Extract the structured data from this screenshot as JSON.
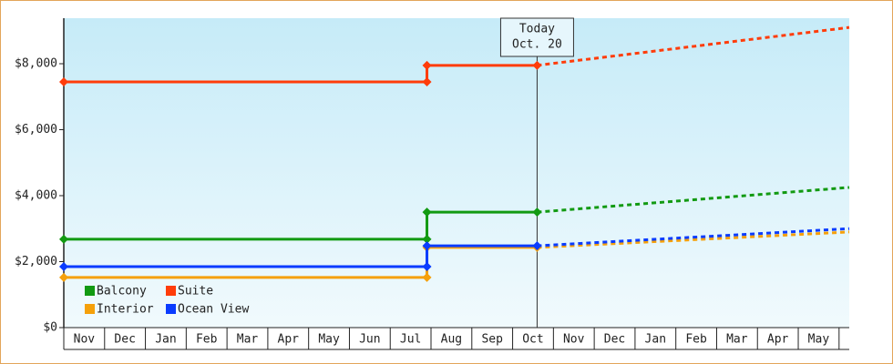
{
  "chart_data": {
    "type": "line",
    "categories": [
      "Nov",
      "Dec",
      "Jan",
      "Feb",
      "Mar",
      "Apr",
      "May",
      "Jun",
      "Jul",
      "Aug",
      "Sep",
      "Oct",
      "Nov",
      "Dec",
      "Jan",
      "Feb",
      "Mar",
      "Apr",
      "May"
    ],
    "xlim": [
      0,
      19.25
    ],
    "ylim": [
      0,
      9380
    ],
    "yticks": [
      {
        "value": 0,
        "label": "$0"
      },
      {
        "value": 2000,
        "label": "$2,000"
      },
      {
        "value": 4000,
        "label": "$4,000"
      },
      {
        "value": 6000,
        "label": "$6,000"
      },
      {
        "value": 8000,
        "label": "$8,000"
      }
    ],
    "today": {
      "x": 11.6,
      "label": [
        "Today",
        "Oct. 20"
      ]
    },
    "series": [
      {
        "name": "Balcony",
        "color": "#129a12",
        "x": [
          0,
          8.9,
          8.9,
          11.6
        ],
        "values": [
          2680,
          2680,
          3500,
          3500
        ],
        "forecast": {
          "x": [
            19.25
          ],
          "values": [
            4250
          ]
        }
      },
      {
        "name": "Suite",
        "color": "#ff3c0a",
        "x": [
          0,
          8.9,
          8.9,
          11.6
        ],
        "values": [
          7450,
          7450,
          7950,
          7950
        ],
        "forecast": {
          "x": [
            19.25
          ],
          "values": [
            9100
          ]
        }
      },
      {
        "name": "Interior",
        "color": "#f5a00a",
        "x": [
          0,
          8.9,
          8.9,
          11.6
        ],
        "values": [
          1520,
          1520,
          2430,
          2430
        ],
        "forecast": {
          "x": [
            19.25
          ],
          "values": [
            2900
          ]
        }
      },
      {
        "name": "Ocean View",
        "color": "#0a3cff",
        "x": [
          0,
          8.9,
          8.9,
          11.6
        ],
        "values": [
          1850,
          1850,
          2480,
          2480
        ],
        "forecast": {
          "x": [
            19.25
          ],
          "values": [
            3000
          ]
        }
      }
    ]
  }
}
